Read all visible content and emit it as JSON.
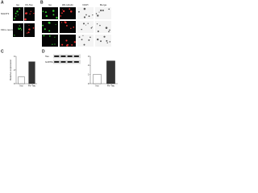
{
  "panels": [
    {
      "letter": "A",
      "columns": [
        "Iso",
        "Fb-Tau"
      ],
      "rows": [
        "NIH3T3",
        "Fibro-neuron"
      ]
    },
    {
      "letter": "B",
      "columns": [
        "Iso",
        "βIII-tubulin",
        "DAPI",
        "Merge"
      ]
    },
    {
      "letter": "C",
      "chart": {
        "type": "bar",
        "ylabel": "Relative expression",
        "categories": [
          "Iso",
          "Fb-Tau"
        ],
        "values": [
          1,
          3.2
        ],
        "ylim": [
          0,
          4
        ],
        "yticks": [
          0,
          2,
          4
        ]
      }
    },
    {
      "letter": "D",
      "blot": [
        "Tau",
        "GAPDH"
      ],
      "chart": {
        "type": "bar",
        "categories": [
          "Iso",
          "Fb-Tau"
        ],
        "values": [
          1,
          2.5
        ],
        "ylim": [
          0,
          3
        ],
        "yticks": [
          0,
          1,
          2,
          3
        ]
      }
    }
  ]
}
